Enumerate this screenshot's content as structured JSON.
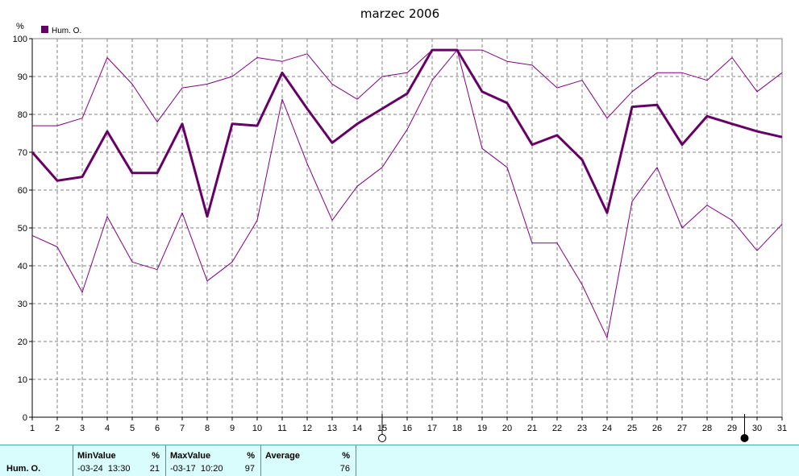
{
  "chart_data": {
    "type": "line",
    "title": "marzec 2006",
    "ylabel": "%",
    "ylim": [
      0,
      100
    ],
    "yticks": [
      0,
      10,
      20,
      30,
      40,
      50,
      60,
      70,
      80,
      90,
      100
    ],
    "x": [
      1,
      2,
      3,
      4,
      5,
      6,
      7,
      8,
      9,
      10,
      11,
      12,
      13,
      14,
      15,
      16,
      17,
      18,
      19,
      20,
      21,
      22,
      23,
      24,
      25,
      26,
      27,
      28,
      29,
      30,
      31
    ],
    "grid": true,
    "legend": "top-left",
    "legend_label": "Hum. O.",
    "series": [
      {
        "name": "Hum. O.",
        "role": "average",
        "color": "#660066",
        "values": [
          70,
          62.5,
          63.5,
          75.5,
          64.5,
          64.5,
          77.5,
          53,
          77.5,
          77,
          91,
          81.5,
          72.5,
          77.5,
          81.5,
          85.5,
          97,
          97,
          86,
          83,
          72,
          74.5,
          68,
          54,
          82,
          82.5,
          72,
          79.5,
          77.5,
          75.5,
          74
        ]
      },
      {
        "role": "max",
        "color": "#800080",
        "values": [
          77,
          77,
          79,
          95,
          88,
          78,
          87,
          88,
          90,
          95,
          94,
          96,
          88,
          84,
          90,
          91,
          97,
          97,
          97,
          94,
          93,
          87,
          89,
          79,
          86,
          91,
          91,
          89,
          95,
          86,
          91
        ]
      },
      {
        "role": "min",
        "color": "#800080",
        "values": [
          48,
          45,
          33,
          53,
          41,
          39,
          54,
          36,
          41,
          52,
          84,
          67,
          52,
          61,
          66,
          76,
          89,
          97,
          71,
          66,
          46,
          46,
          35,
          21,
          57,
          66,
          50,
          56,
          52,
          44,
          51
        ]
      }
    ],
    "markers": [
      {
        "day": 15,
        "symbol": "open-circle"
      },
      {
        "day": 29.5,
        "symbol": "filled-circle"
      }
    ]
  },
  "stats": {
    "row_label": "Hum. O.",
    "min_header": "MinValue",
    "min_unit": "%",
    "min_time": "-03-24  13:30",
    "min_value": "21",
    "max_header": "MaxValue",
    "max_unit": "%",
    "max_time": "-03-17  10:20",
    "max_value": "97",
    "avg_header": "Average",
    "avg_unit": "%",
    "avg_value": "76"
  }
}
